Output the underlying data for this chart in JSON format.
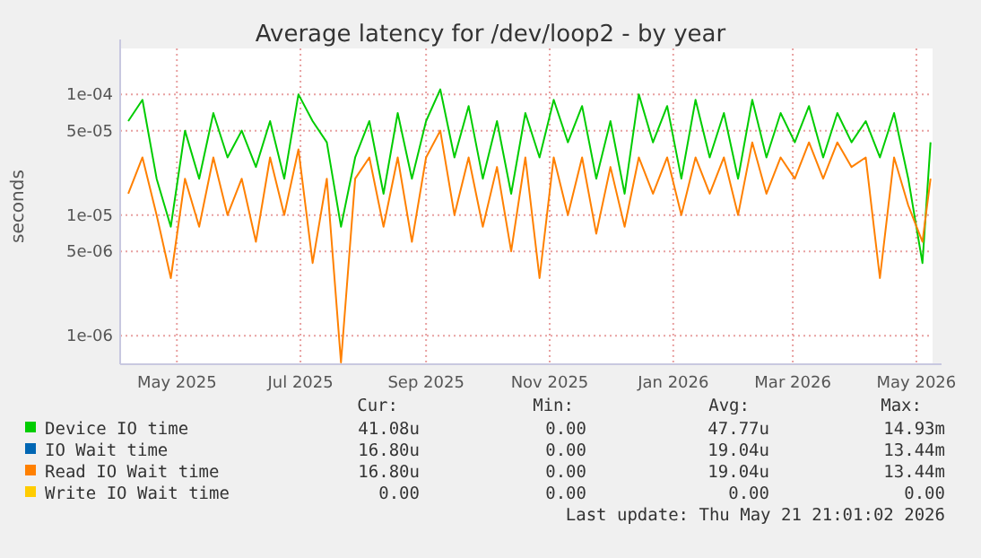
{
  "chart_data": {
    "type": "line",
    "title": "Average latency for /dev/loop2 - by year",
    "ylabel": "seconds",
    "log": "y",
    "grid": true,
    "legend": "bottom",
    "line_style": "solid",
    "xlim": [
      "2025-04-03",
      "2026-05-09"
    ],
    "xticks": [
      {
        "value": "2025-05-01",
        "label": "May 2025"
      },
      {
        "value": "2025-07-01",
        "label": "Jul 2025"
      },
      {
        "value": "2025-09-01",
        "label": "Sep 2025"
      },
      {
        "value": "2025-11-01",
        "label": "Nov 2025"
      },
      {
        "value": "2026-01-01",
        "label": "Jan 2026"
      },
      {
        "value": "2026-03-01",
        "label": "Mar 2026"
      },
      {
        "value": "2026-05-01",
        "label": "May 2026"
      }
    ],
    "ylim": [
      5.8e-07,
      0.00024
    ],
    "yticks": [
      {
        "value": 1e-06,
        "label": "1e-06"
      },
      {
        "value": 5e-06,
        "label": "5e-06"
      },
      {
        "value": 1e-05,
        "label": "1e-05"
      },
      {
        "value": 5e-05,
        "label": "5e-05"
      },
      {
        "value": 0.0001,
        "label": "1e-04"
      }
    ],
    "x": [
      "2025-04-07",
      "2025-04-14",
      "2025-04-21",
      "2025-04-28",
      "2025-05-05",
      "2025-05-12",
      "2025-05-19",
      "2025-05-26",
      "2025-06-02",
      "2025-06-09",
      "2025-06-16",
      "2025-06-23",
      "2025-06-30",
      "2025-07-07",
      "2025-07-14",
      "2025-07-21",
      "2025-07-28",
      "2025-08-04",
      "2025-08-11",
      "2025-08-18",
      "2025-08-25",
      "2025-09-01",
      "2025-09-08",
      "2025-09-15",
      "2025-09-22",
      "2025-09-29",
      "2025-10-06",
      "2025-10-13",
      "2025-10-20",
      "2025-10-27",
      "2025-11-03",
      "2025-11-10",
      "2025-11-17",
      "2025-11-24",
      "2025-12-01",
      "2025-12-08",
      "2025-12-15",
      "2025-12-22",
      "2025-12-29",
      "2026-01-05",
      "2026-01-12",
      "2026-01-19",
      "2026-01-26",
      "2026-02-02",
      "2026-02-09",
      "2026-02-16",
      "2026-02-23",
      "2026-03-02",
      "2026-03-09",
      "2026-03-16",
      "2026-03-23",
      "2026-03-30",
      "2026-04-06",
      "2026-04-13",
      "2026-04-20",
      "2026-04-27",
      "2026-05-04",
      "2026-05-08"
    ],
    "series": [
      {
        "name": "Device IO time",
        "color": "#00cc00",
        "values": [
          6e-05,
          9e-05,
          2e-05,
          8e-06,
          5e-05,
          2e-05,
          7e-05,
          3e-05,
          5e-05,
          2.5e-05,
          6e-05,
          2e-05,
          0.0001,
          6e-05,
          4e-05,
          8e-06,
          3e-05,
          6e-05,
          1.5e-05,
          7e-05,
          2e-05,
          6e-05,
          0.00011,
          3e-05,
          8e-05,
          2e-05,
          6e-05,
          1.5e-05,
          7e-05,
          3e-05,
          9e-05,
          4e-05,
          8e-05,
          2e-05,
          6e-05,
          1.5e-05,
          0.0001,
          4e-05,
          8e-05,
          2e-05,
          9e-05,
          3e-05,
          7e-05,
          2e-05,
          9e-05,
          3e-05,
          7e-05,
          4e-05,
          8e-05,
          3e-05,
          7e-05,
          4e-05,
          6e-05,
          3e-05,
          7e-05,
          2e-05,
          4e-06,
          4e-05
        ]
      },
      {
        "name": "IO Wait time",
        "color": "#0066b3",
        "values": [
          null,
          null,
          null,
          null,
          null,
          null,
          null,
          null,
          null,
          null,
          null,
          null,
          null,
          null,
          null,
          null,
          null,
          null,
          null,
          null,
          null,
          null,
          null,
          null,
          null,
          null,
          null,
          null,
          null,
          null,
          null,
          null,
          null,
          null,
          null,
          null,
          null,
          null,
          null,
          null,
          null,
          null,
          null,
          null,
          null,
          null,
          null,
          null,
          null,
          null,
          null,
          null,
          null,
          null,
          null,
          null,
          null,
          null
        ]
      },
      {
        "name": "Read IO Wait time",
        "color": "#ff8000",
        "values": [
          1.5e-05,
          3e-05,
          1e-05,
          3e-06,
          2e-05,
          8e-06,
          3e-05,
          1e-05,
          2e-05,
          6e-06,
          3e-05,
          1e-05,
          3.5e-05,
          4e-06,
          2e-05,
          6e-07,
          2e-05,
          3e-05,
          8e-06,
          3e-05,
          6e-06,
          3e-05,
          5e-05,
          1e-05,
          3e-05,
          8e-06,
          2.5e-05,
          5e-06,
          3e-05,
          3e-06,
          3e-05,
          1e-05,
          3e-05,
          7e-06,
          2.5e-05,
          8e-06,
          3e-05,
          1.5e-05,
          3e-05,
          1e-05,
          3e-05,
          1.5e-05,
          3e-05,
          1e-05,
          4e-05,
          1.5e-05,
          3e-05,
          2e-05,
          4e-05,
          2e-05,
          4e-05,
          2.5e-05,
          3e-05,
          3e-06,
          3e-05,
          1.2e-05,
          6e-06,
          2e-05
        ]
      },
      {
        "name": "Write IO Wait time",
        "color": "#ffcc00",
        "values": [
          null,
          null,
          null,
          null,
          null,
          null,
          null,
          null,
          null,
          null,
          null,
          null,
          null,
          null,
          null,
          null,
          null,
          null,
          null,
          null,
          null,
          null,
          null,
          null,
          null,
          null,
          null,
          null,
          null,
          null,
          null,
          null,
          null,
          null,
          null,
          null,
          null,
          null,
          null,
          null,
          null,
          null,
          null,
          null,
          null,
          null,
          null,
          null,
          null,
          null,
          null,
          null,
          null,
          null,
          null,
          null,
          null,
          null
        ]
      }
    ],
    "annotations": [
      "Cur:",
      "Min:",
      "Avg:",
      "Max:",
      "41.08u",
      "0.00",
      "47.77u",
      "14.93m",
      "16.80u",
      "0.00",
      "19.04u",
      "13.44m",
      "16.80u",
      "0.00",
      "19.04u",
      "13.44m",
      "0.00",
      "0.00",
      "0.00",
      "0.00",
      "Last update: Thu May 21 21:01:02 2026"
    ]
  }
}
